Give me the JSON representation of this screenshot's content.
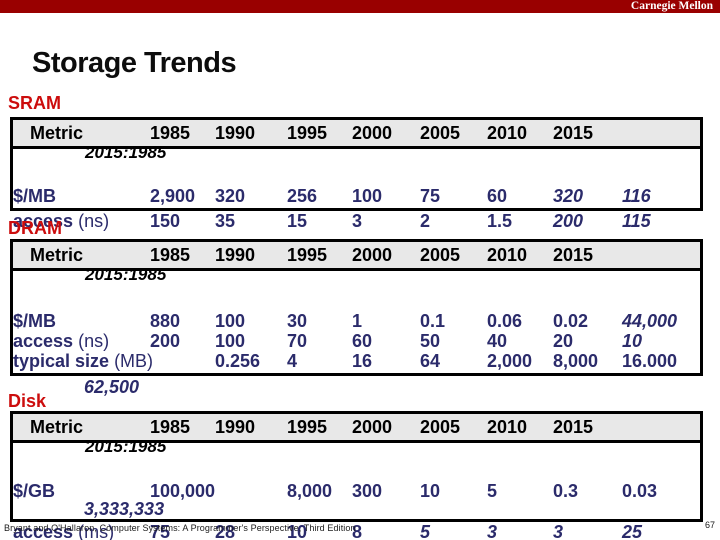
{
  "brand": {
    "name": "Carnegie Mellon"
  },
  "title": "Storage Trends",
  "years": [
    "1985",
    "1990",
    "1995",
    "2000",
    "2005",
    "2010",
    "2015"
  ],
  "colors": {
    "banner_red": "#990000",
    "section_red": "#cc0d0d",
    "data_navy": "#2b2b6b",
    "header_gray": "#e8e8e8"
  },
  "sections": [
    {
      "name": "SRAM",
      "metric_label": "Metric",
      "ratio_label": "2015:1985",
      "rows": [
        {
          "label": "$/MB",
          "suffix": "",
          "cells": [
            {
              "col": 0,
              "text": "2,900"
            },
            {
              "col": 1,
              "text": "320"
            },
            {
              "col": 2,
              "text": "256"
            },
            {
              "col": 3,
              "text": "100"
            },
            {
              "col": 4,
              "text": "75"
            },
            {
              "col": 5,
              "text": "60"
            },
            {
              "col": 6,
              "text": "320",
              "italic": true
            },
            {
              "col": 7,
              "text": "116",
              "italic": true
            }
          ]
        },
        {
          "label": "access",
          "suffix": "(ns)",
          "cells": [
            {
              "col": 0,
              "text": "150"
            },
            {
              "col": 1,
              "text": "35"
            },
            {
              "col": 2,
              "text": "15"
            },
            {
              "col": 3,
              "text": "3"
            },
            {
              "col": 4,
              "text": "2"
            },
            {
              "col": 5,
              "text": "1.5"
            },
            {
              "col": 6,
              "text": "200",
              "italic": true
            },
            {
              "col": 7,
              "text": "115",
              "italic": true
            }
          ]
        }
      ],
      "overflow_value": null
    },
    {
      "name": "DRAM",
      "metric_label": "Metric",
      "ratio_label": "2015:1985",
      "rows": [
        {
          "label": "$/MB",
          "suffix": "",
          "cells": [
            {
              "col": 0,
              "text": "880"
            },
            {
              "col": 1,
              "text": "100"
            },
            {
              "col": 2,
              "text": "30"
            },
            {
              "col": 3,
              "text": "1"
            },
            {
              "col": 4,
              "text": "0.1"
            },
            {
              "col": 5,
              "text": "0.06"
            },
            {
              "col": 6,
              "text": "0.02"
            },
            {
              "col": 7,
              "text": "44,000",
              "italic": true
            }
          ]
        },
        {
          "label": "access",
          "suffix": "(ns)",
          "cells": [
            {
              "col": 0,
              "text": "200"
            },
            {
              "col": 1,
              "text": "100"
            },
            {
              "col": 2,
              "text": "70"
            },
            {
              "col": 3,
              "text": "60"
            },
            {
              "col": 4,
              "text": "50"
            },
            {
              "col": 5,
              "text": "40"
            },
            {
              "col": 6,
              "text": "20"
            },
            {
              "col": 7,
              "text": "10",
              "italic": true
            }
          ]
        },
        {
          "label": "typical size",
          "suffix": "(MB)",
          "cells": [
            {
              "col": 1,
              "text": "0.256"
            },
            {
              "col": 2,
              "text": "4"
            },
            {
              "col": 3,
              "text": "16"
            },
            {
              "col": 4,
              "text": "64"
            },
            {
              "col": 5,
              "text": "2,000"
            },
            {
              "col": 6,
              "text": "8,000"
            },
            {
              "col": 7,
              "text": "16.000"
            }
          ]
        }
      ],
      "overflow_value": "62,500"
    },
    {
      "name": "Disk",
      "metric_label": "Metric",
      "ratio_label": "2015:1985",
      "rows": [
        {
          "label": "$/GB",
          "suffix": "",
          "cells": [
            {
              "col": 0,
              "text": "100,000"
            },
            {
              "col": 2,
              "text": "8,000"
            },
            {
              "col": 3,
              "text": "300"
            },
            {
              "col": 4,
              "text": "10"
            },
            {
              "col": 5,
              "text": "5"
            },
            {
              "col": 6,
              "text": "0.3"
            },
            {
              "col": 7,
              "text": "0.03"
            }
          ]
        },
        {
          "label": "access",
          "suffix": "(ms)",
          "cells": [
            {
              "col": 0,
              "text": "75"
            },
            {
              "col": 1,
              "text": "28"
            },
            {
              "col": 2,
              "text": "10"
            },
            {
              "col": 3,
              "text": "8"
            },
            {
              "col": 4,
              "text": "5",
              "italic": true
            },
            {
              "col": 5,
              "text": "3",
              "italic": true
            },
            {
              "col": 6,
              "text": "3",
              "italic": true
            },
            {
              "col": 7,
              "text": "25",
              "italic": true
            }
          ]
        }
      ],
      "overflow_value": "3,333,333"
    }
  ],
  "footer": {
    "citation": "Bryant and O'Hallaron, Computer Systems: A Programmer's Perspective, Third Edition",
    "page": "67"
  }
}
